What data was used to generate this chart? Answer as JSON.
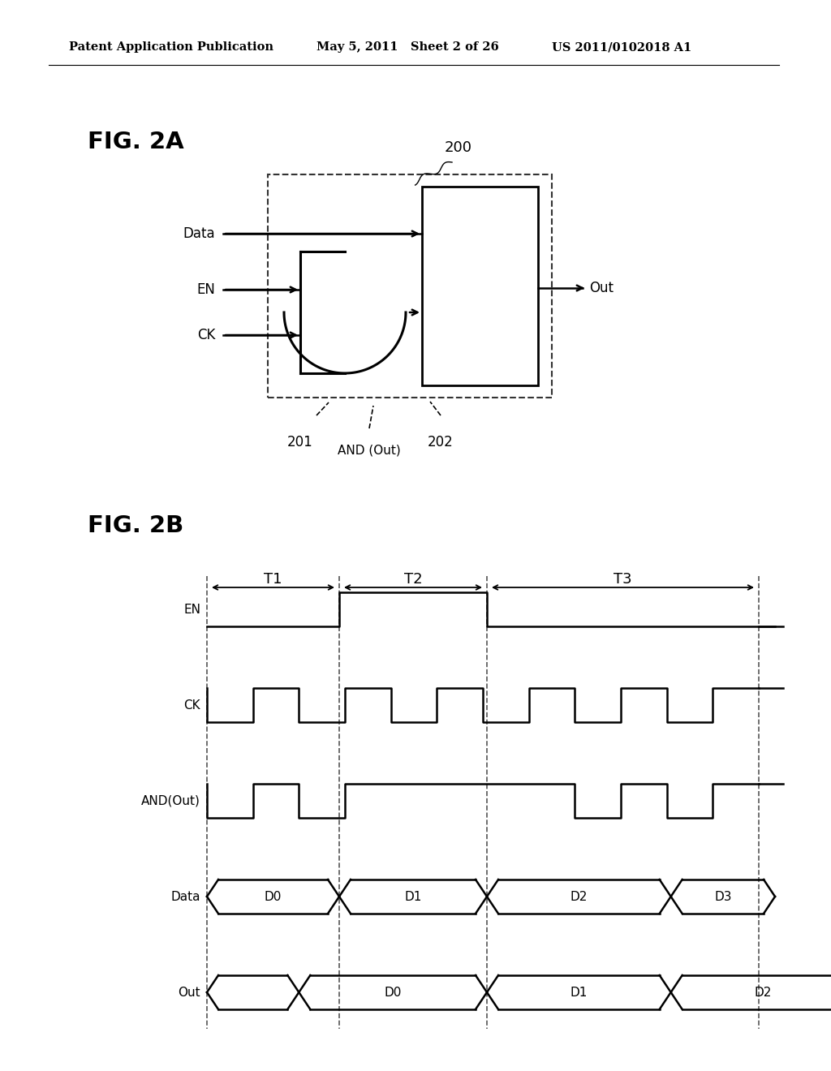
{
  "bg_color": "#ffffff",
  "header_left": "Patent Application Publication",
  "header_mid": "May 5, 2011   Sheet 2 of 26",
  "header_right": "US 2011/0102018 A1",
  "fig2a_label": "FIG. 2A",
  "fig2b_label": "FIG. 2B",
  "label_200": "200",
  "label_201": "201",
  "label_202": "202",
  "label_and_out": "AND (Out)",
  "label_data": "Data",
  "label_en": "EN",
  "label_ck": "CK",
  "label_out": "Out",
  "timing_labels": [
    "EN",
    "CK",
    "AND(Out)",
    "Data",
    "Out"
  ],
  "timing_periods": [
    "T1",
    "T2",
    "T3"
  ],
  "data_labels": [
    "D0",
    "D1",
    "D2",
    "D3"
  ]
}
